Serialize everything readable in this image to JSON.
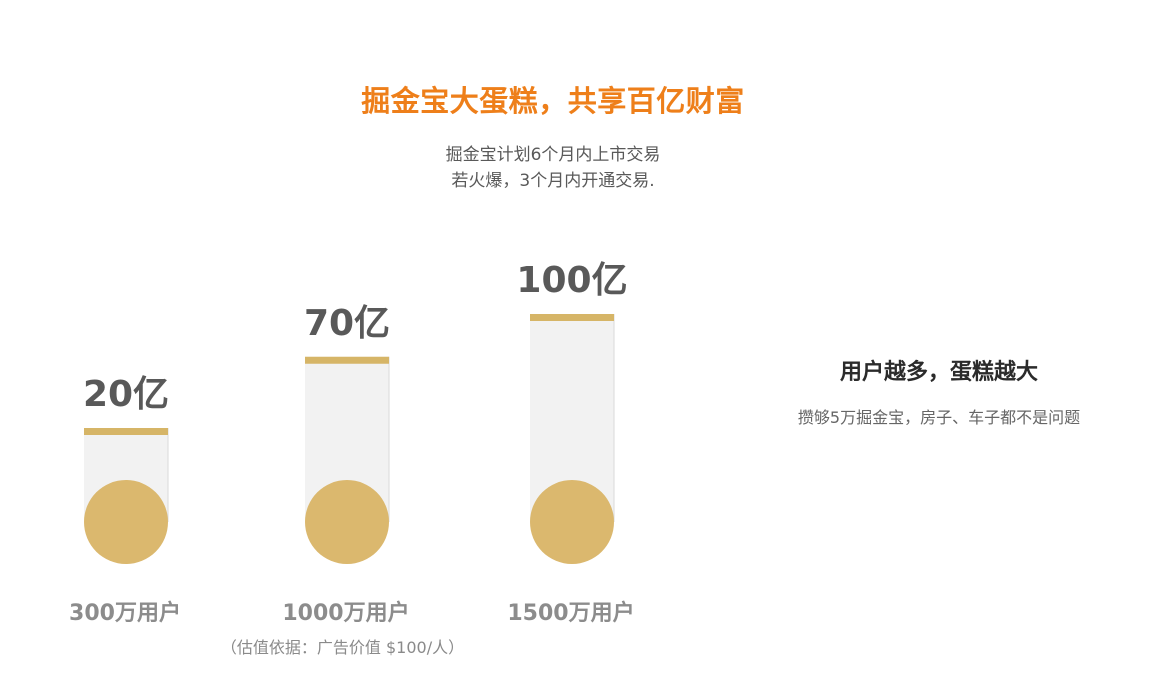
{
  "header": {
    "title": "掘金宝大蛋糕，共享百亿财富",
    "subtitle_line1": "掘金宝计划6个月内上市交易",
    "subtitle_line2": "若火爆，3个月内开通交易."
  },
  "chart_data": {
    "type": "bar",
    "categories": [
      "300万用户",
      "1000万用户",
      "1500万用户"
    ],
    "value_labels": [
      "20亿",
      "70亿",
      "100亿"
    ],
    "values": [
      20,
      70,
      100
    ],
    "unit": "亿",
    "note": "（估值依据：广告价值 $100/人）",
    "colors": {
      "cap": "#d6b567",
      "ball": "#dbb86e",
      "tube": "#f2f2f2",
      "tube_border": "#d9d9d9",
      "value_text": "#595959",
      "category_text": "#8c8c8c"
    }
  },
  "side": {
    "heading": "用户越多，蛋糕越大",
    "text": "攒够5万掘金宝，房子、车子都不是问题"
  }
}
